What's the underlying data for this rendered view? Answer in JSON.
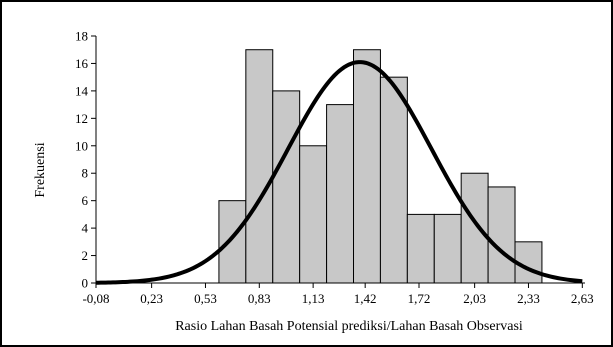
{
  "chart_data": {
    "type": "bar",
    "title": "",
    "xlabel": "Rasio Lahan Basah Potensial prediksi/Lahan Basah Observasi",
    "ylabel": "Frekuensi",
    "ylim": [
      0,
      18
    ],
    "yticks": [
      "0",
      "2",
      "4",
      "6",
      "8",
      "10",
      "12",
      "14",
      "16",
      "18"
    ],
    "xticks": [
      "-0,08",
      "0,23",
      "0,53",
      "0,83",
      "1,13",
      "1,42",
      "1,72",
      "2,03",
      "2,33",
      "2,63"
    ],
    "bin_start": -0.08,
    "bin_width": 0.15,
    "bins": [
      {
        "start": 0.605,
        "value": 6
      },
      {
        "start": 0.755,
        "value": 17
      },
      {
        "start": 0.905,
        "value": 14
      },
      {
        "start": 1.055,
        "value": 10
      },
      {
        "start": 1.205,
        "value": 13
      },
      {
        "start": 1.355,
        "value": 17
      },
      {
        "start": 1.505,
        "value": 15
      },
      {
        "start": 1.655,
        "value": 5
      },
      {
        "start": 1.805,
        "value": 5
      },
      {
        "start": 1.955,
        "value": 8
      },
      {
        "start": 2.105,
        "value": 7
      },
      {
        "start": 2.255,
        "value": 3
      }
    ],
    "normal_curve": {
      "mean": 1.39,
      "sd": 0.4,
      "peak": 16.1,
      "xrange": [
        -0.08,
        2.63
      ]
    },
    "bar_color": "#c8c8c8",
    "curve_color": "#000000",
    "grid": false,
    "legend": "none"
  }
}
